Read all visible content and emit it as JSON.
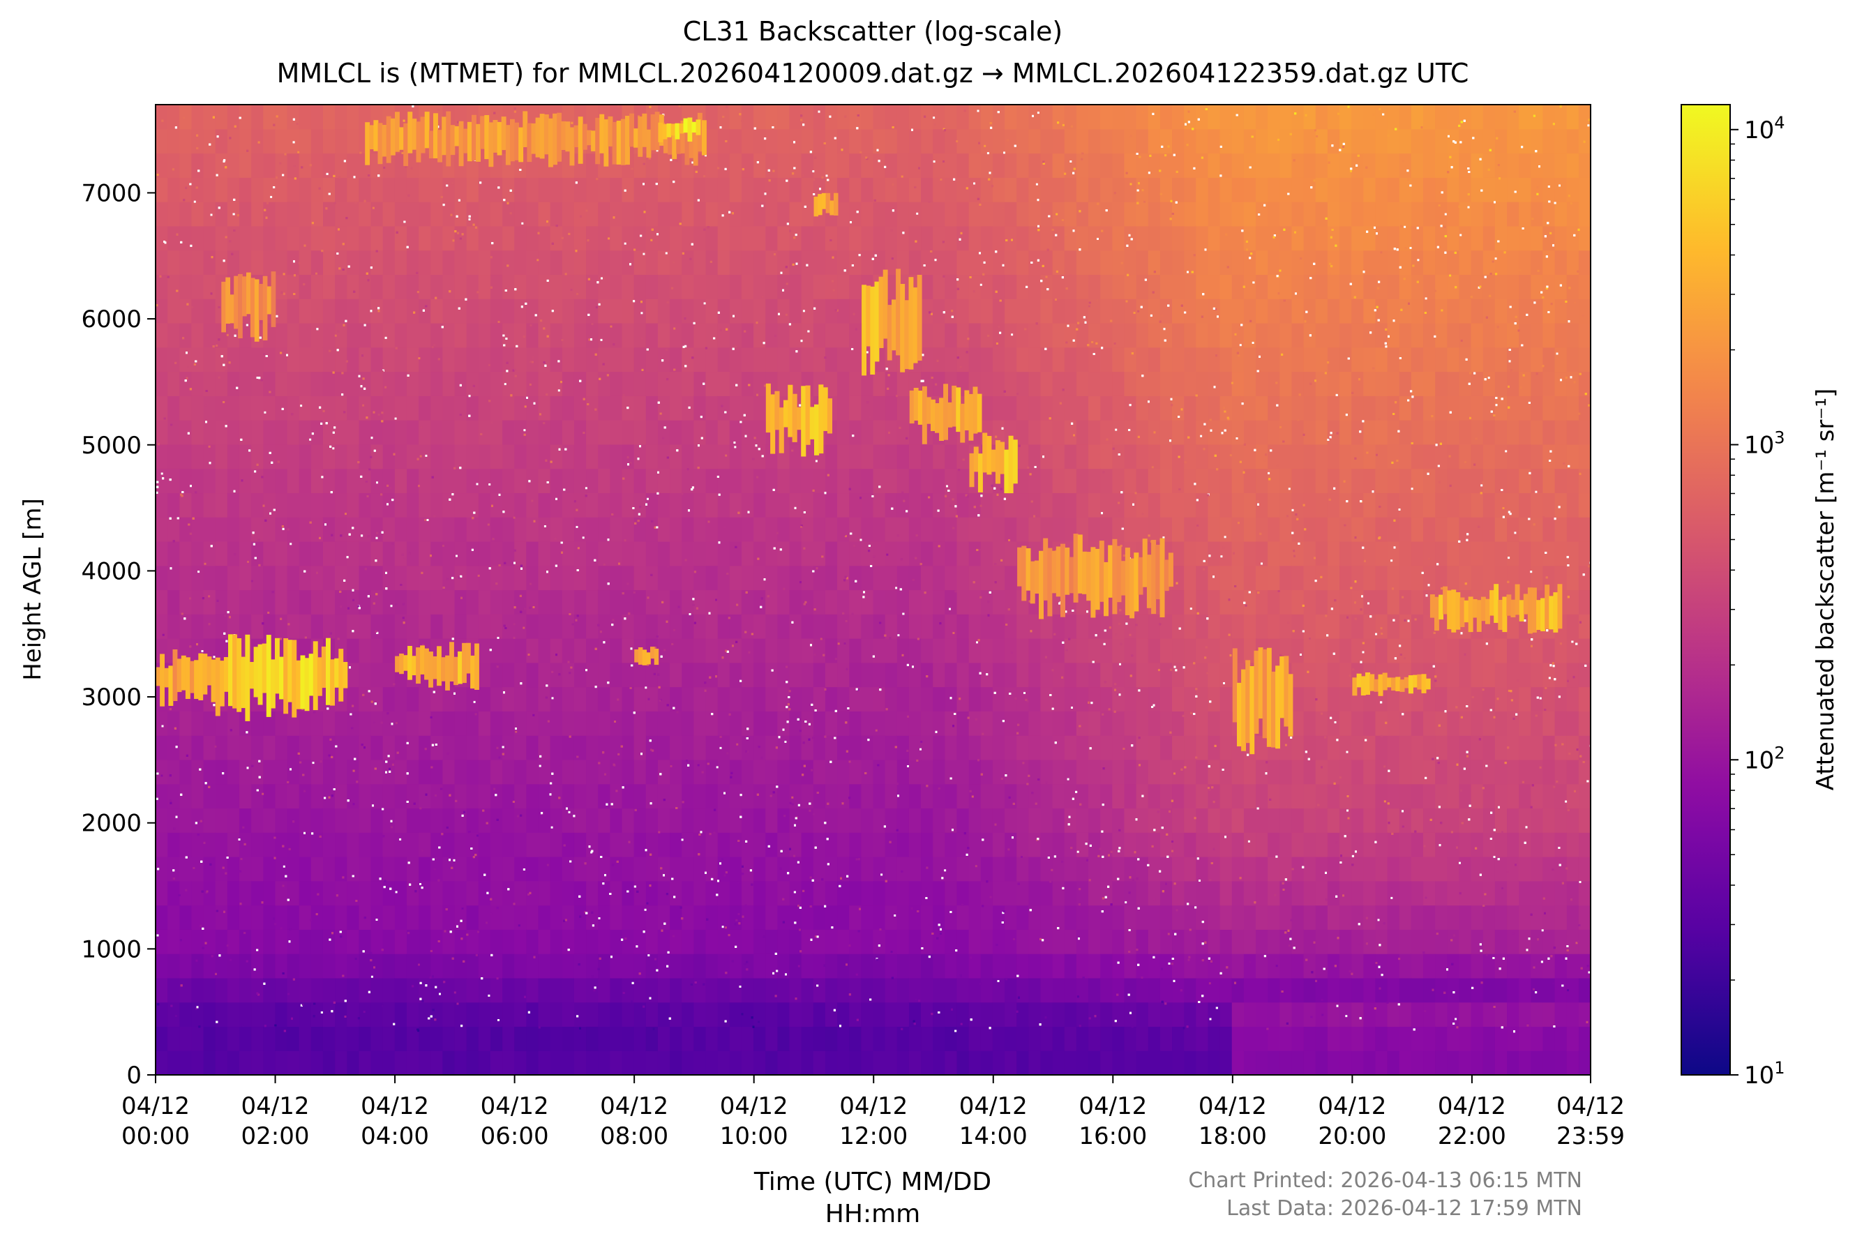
{
  "chart_data": {
    "type": "heatmap",
    "title": "CL31 Backscatter (log-scale)",
    "subtitle": "MMLCL is (MTMET) for MMLCL.202604120009.dat.gz → MMLCL.202604122359.dat.gz UTC",
    "xlabel_line1": "Time (UTC) MM/DD",
    "xlabel_line2": "HH:mm",
    "ylabel": "Height AGL [m]",
    "colorbar_label": "Attenuated backscatter [m⁻¹ sr⁻¹]",
    "colormap": "plasma",
    "color_scale": "log",
    "color_range": [
      10,
      12000
    ],
    "colorbar_ticks": [
      {
        "value": 10,
        "base": "10",
        "exp": "1"
      },
      {
        "value": 100,
        "base": "10",
        "exp": "2"
      },
      {
        "value": 1000,
        "base": "10",
        "exp": "3"
      },
      {
        "value": 10000,
        "base": "10",
        "exp": "4"
      }
    ],
    "xlim_hours": [
      0,
      23.983
    ],
    "ylim": [
      0,
      7700
    ],
    "x_ticks": [
      {
        "hour": 0,
        "date": "04/12",
        "time": "00:00"
      },
      {
        "hour": 2,
        "date": "04/12",
        "time": "02:00"
      },
      {
        "hour": 4,
        "date": "04/12",
        "time": "04:00"
      },
      {
        "hour": 6,
        "date": "04/12",
        "time": "06:00"
      },
      {
        "hour": 8,
        "date": "04/12",
        "time": "08:00"
      },
      {
        "hour": 10,
        "date": "04/12",
        "time": "10:00"
      },
      {
        "hour": 12,
        "date": "04/12",
        "time": "12:00"
      },
      {
        "hour": 14,
        "date": "04/12",
        "time": "14:00"
      },
      {
        "hour": 16,
        "date": "04/12",
        "time": "16:00"
      },
      {
        "hour": 18,
        "date": "04/12",
        "time": "18:00"
      },
      {
        "hour": 20,
        "date": "04/12",
        "time": "20:00"
      },
      {
        "hour": 22,
        "date": "04/12",
        "time": "22:00"
      },
      {
        "hour": 23.983,
        "date": "04/12",
        "time": "23:59"
      }
    ],
    "y_ticks": [
      0,
      1000,
      2000,
      3000,
      4000,
      5000,
      6000,
      7000
    ],
    "cloud_layers": [
      {
        "t0": 0.0,
        "t1": 1.0,
        "h0": 2900,
        "h1": 3400,
        "log_value": 3.4
      },
      {
        "t0": 1.0,
        "t1": 3.2,
        "h0": 2800,
        "h1": 3500,
        "log_value": 3.7
      },
      {
        "t0": 4.0,
        "t1": 5.4,
        "h0": 3050,
        "h1": 3450,
        "log_value": 3.5
      },
      {
        "t0": 8.0,
        "t1": 8.4,
        "h0": 3250,
        "h1": 3400,
        "log_value": 3.5
      },
      {
        "t0": 1.1,
        "t1": 2.0,
        "h0": 5800,
        "h1": 6400,
        "log_value": 3.2
      },
      {
        "t0": 3.5,
        "t1": 9.2,
        "h0": 7200,
        "h1": 7650,
        "log_value": 3.3
      },
      {
        "t0": 8.4,
        "t1": 9.1,
        "h0": 7400,
        "h1": 7600,
        "log_value": 3.8
      },
      {
        "t0": 10.2,
        "t1": 11.3,
        "h0": 4900,
        "h1": 5500,
        "log_value": 3.6
      },
      {
        "t0": 11.8,
        "t1": 12.8,
        "h0": 5500,
        "h1": 6400,
        "log_value": 3.5
      },
      {
        "t0": 12.6,
        "t1": 13.8,
        "h0": 5000,
        "h1": 5500,
        "log_value": 3.5
      },
      {
        "t0": 13.6,
        "t1": 14.4,
        "h0": 4600,
        "h1": 5100,
        "log_value": 3.6
      },
      {
        "t0": 14.4,
        "t1": 17.0,
        "h0": 3600,
        "h1": 4300,
        "log_value": 3.3
      },
      {
        "t0": 18.0,
        "t1": 19.0,
        "h0": 2500,
        "h1": 3400,
        "log_value": 3.4
      },
      {
        "t0": 20.0,
        "t1": 21.3,
        "h0": 3000,
        "h1": 3200,
        "log_value": 3.5
      },
      {
        "t0": 21.3,
        "t1": 23.5,
        "h0": 3500,
        "h1": 3900,
        "log_value": 3.5
      },
      {
        "t0": 11.0,
        "t1": 11.4,
        "h0": 6800,
        "h1": 7000,
        "log_value": 3.4
      }
    ]
  },
  "footer": {
    "printed": "Chart Printed: 2026-04-13 06:15 MTN",
    "last_data": "Last Data: 2026-04-12 17:59 MTN"
  },
  "colors": {
    "footer_text": "#808080",
    "frame": "#000000",
    "background": "#ffffff"
  }
}
